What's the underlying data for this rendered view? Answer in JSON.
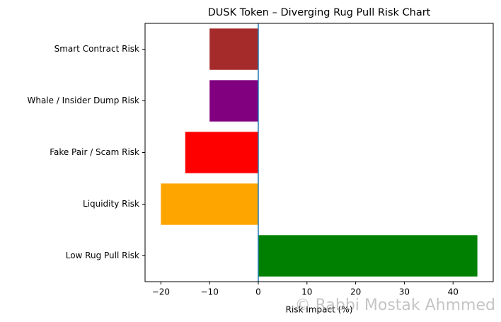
{
  "chart_data": {
    "type": "barh",
    "title": "DUSK Token – Diverging Rug Pull Risk Chart",
    "x_label": "Risk Impact (%)",
    "categories": [
      "Low Rug Pull Risk",
      "Liquidity Risk",
      "Fake Pair / Scam Risk",
      "Whale / Insider Dump Risk",
      "Smart Contract Risk"
    ],
    "values": [
      45,
      -20,
      -15,
      -10,
      -10
    ],
    "colors": [
      "#008000",
      "#ffa500",
      "#ff0000",
      "#800080",
      "#a52a2a"
    ],
    "xlim": [
      -23.25,
      48.25
    ],
    "xticks": [
      {
        "value": -20,
        "label": "−20"
      },
      {
        "value": -10,
        "label": "−10"
      },
      0,
      10,
      20,
      30,
      40
    ],
    "vline": 0,
    "vline_color": "#1f77b4",
    "watermark": "© Rabbi Mostak Ahmmed"
  }
}
